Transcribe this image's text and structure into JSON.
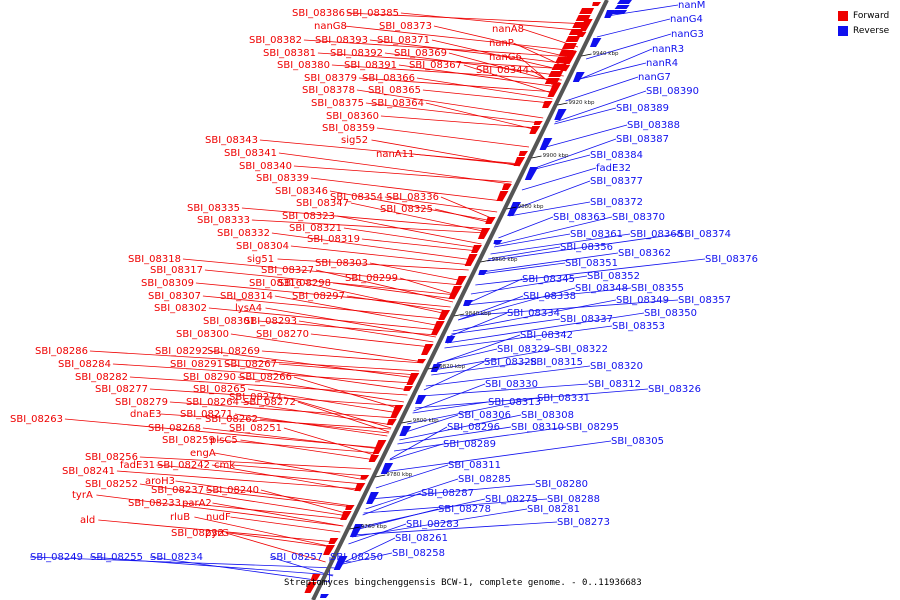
{
  "legend": {
    "forward_label": "Forward",
    "reverse_label": "Reverse",
    "forward_color": "#ee0000",
    "reverse_color": "#1010ee"
  },
  "caption": "Streptomyces bingchenggensis BCW-1, complete genome. - 0..11936683",
  "scale": [
    "9940 kbp",
    "9920 kbp",
    "9900 kbp",
    "9880 kbp",
    "9860 kbp",
    "9840 kbp",
    "9820 kbp",
    "9800 kbp",
    "9780 kbp",
    "9760 kbp"
  ],
  "forward_genes": [
    "SBI_08386",
    "SBI_08385",
    "nanG8",
    "SBI_08373",
    "SBI_08382",
    "SBI_08393",
    "SBI_08371",
    "SBI_08381",
    "SBI_08392",
    "SBI_08369",
    "SBI_08380",
    "SBI_08391",
    "SBI_08367",
    "SBI_08379",
    "SBI_08366",
    "SBI_08378",
    "SBI_08365",
    "SBI_08375",
    "SBI_08364",
    "SBI_08360",
    "SBI_08359",
    "sig52",
    "nanA11",
    "nanA8",
    "nanP",
    "nanG6",
    "SBI_08344",
    "SBI_08343",
    "SBI_08341",
    "SBI_08340",
    "SBI_08339",
    "SBI_08346",
    "SBI_08354",
    "SBI_08336",
    "SBI_08347",
    "SBI_08325",
    "SBI_08335",
    "SBI_08323",
    "SBI_08333",
    "SBI_08321",
    "SBI_08332",
    "SBI_08319",
    "SBI_08304",
    "SBI_08318",
    "sig51",
    "SBI_08303",
    "SBI_08317",
    "SBI_08327",
    "SBI_08299",
    "SBI_08309",
    "SBI_08316",
    "SBI_08298",
    "SBI_08307",
    "SBI_08314",
    "SBI_08297",
    "SBI_08302",
    "lysA4",
    "SBI_08301",
    "SBI_08293",
    "SBI_08300",
    "SBI_08270",
    "SBI_08286",
    "SBI_08292",
    "SBI_08269",
    "SBI_08284",
    "SBI_08291",
    "SBI_08267",
    "SBI_08282",
    "SBI_08290",
    "SBI_08266",
    "SBI_08277",
    "SBI_08265",
    "SBI_08274",
    "SBI_08279",
    "SBI_08264",
    "SBI_08272",
    "dnaE3",
    "SBI_08271",
    "SBI_08263",
    "SBI_08262",
    "SBI_08268",
    "SBI_08251",
    "SBI_08259",
    "plsC5",
    "engA",
    "SBI_08256",
    "fadE31",
    "SBI_08242",
    "cmk",
    "SBI_08241",
    "aroH3",
    "SBI_08252",
    "SBI_08237",
    "SBI_08240",
    "tyrA",
    "SBI_08233",
    "parA2",
    "rluB",
    "nudF",
    "ald",
    "SBI_08232",
    "pyrG"
  ],
  "reverse_genes": [
    "nanM",
    "nanG4",
    "nanG3",
    "nanR3",
    "nanR4",
    "nanG7",
    "SBI_08390",
    "SBI_08389",
    "SBI_08388",
    "SBI_08387",
    "SBI_08384",
    "fadE32",
    "SBI_08377",
    "SBI_08372",
    "SBI_08363",
    "SBI_08370",
    "SBI_08361",
    "SBI_08368",
    "SBI_08374",
    "SBI_08356",
    "SBI_08362",
    "SBI_08376",
    "SBI_08351",
    "SBI_08352",
    "SBI_08345",
    "SBI_08348",
    "SBI_08355",
    "SBI_08338",
    "SBI_08349",
    "SBI_08357",
    "SBI_08334",
    "SBI_08350",
    "SBI_08337",
    "SBI_08353",
    "SBI_08342",
    "SBI_08329",
    "SBI_08322",
    "SBI_08328",
    "SBI_08315",
    "SBI_08320",
    "SBI_08330",
    "SBI_08312",
    "SBI_08326",
    "SBI_08331",
    "SBI_08313",
    "SBI_08306",
    "SBI_08308",
    "SBI_08296",
    "SBI_08310",
    "SBI_08295",
    "SBI_08305",
    "SBI_08289",
    "SBI_08311",
    "SBI_08285",
    "SBI_08280",
    "SBI_08287",
    "SBI_08275",
    "SBI_08288",
    "SBI_08278",
    "SBI_08281",
    "SBI_08273",
    "SBI_08283",
    "SBI_08261",
    "SBI_08258",
    "SBI_08257",
    "SBI_08250",
    "SBI_08249",
    "SBI_08255",
    "SBI_08234"
  ]
}
